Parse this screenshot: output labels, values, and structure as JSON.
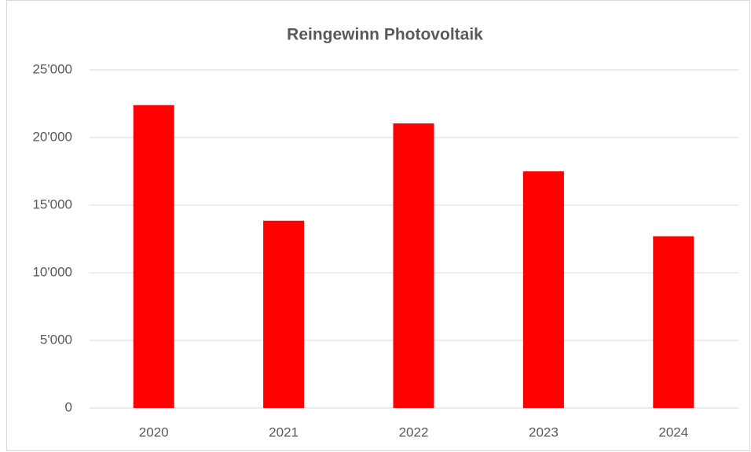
{
  "chart_data": {
    "type": "bar",
    "title": "Reingewinn Photovoltaik",
    "categories": [
      "2020",
      "2021",
      "2022",
      "2023",
      "2024"
    ],
    "values": [
      22400,
      13850,
      21050,
      17500,
      12700
    ],
    "color": "#ff0000",
    "ylim": [
      0,
      25000
    ],
    "yticks": [
      0,
      {
        "value": 5000,
        "label": "5'000"
      },
      {
        "value": 10000,
        "label": "10'000"
      },
      {
        "value": 15000,
        "label": "15'000"
      },
      {
        "value": 20000,
        "label": "20'000"
      },
      {
        "value": 25000,
        "label": "25'000"
      }
    ],
    "grid": true
  }
}
